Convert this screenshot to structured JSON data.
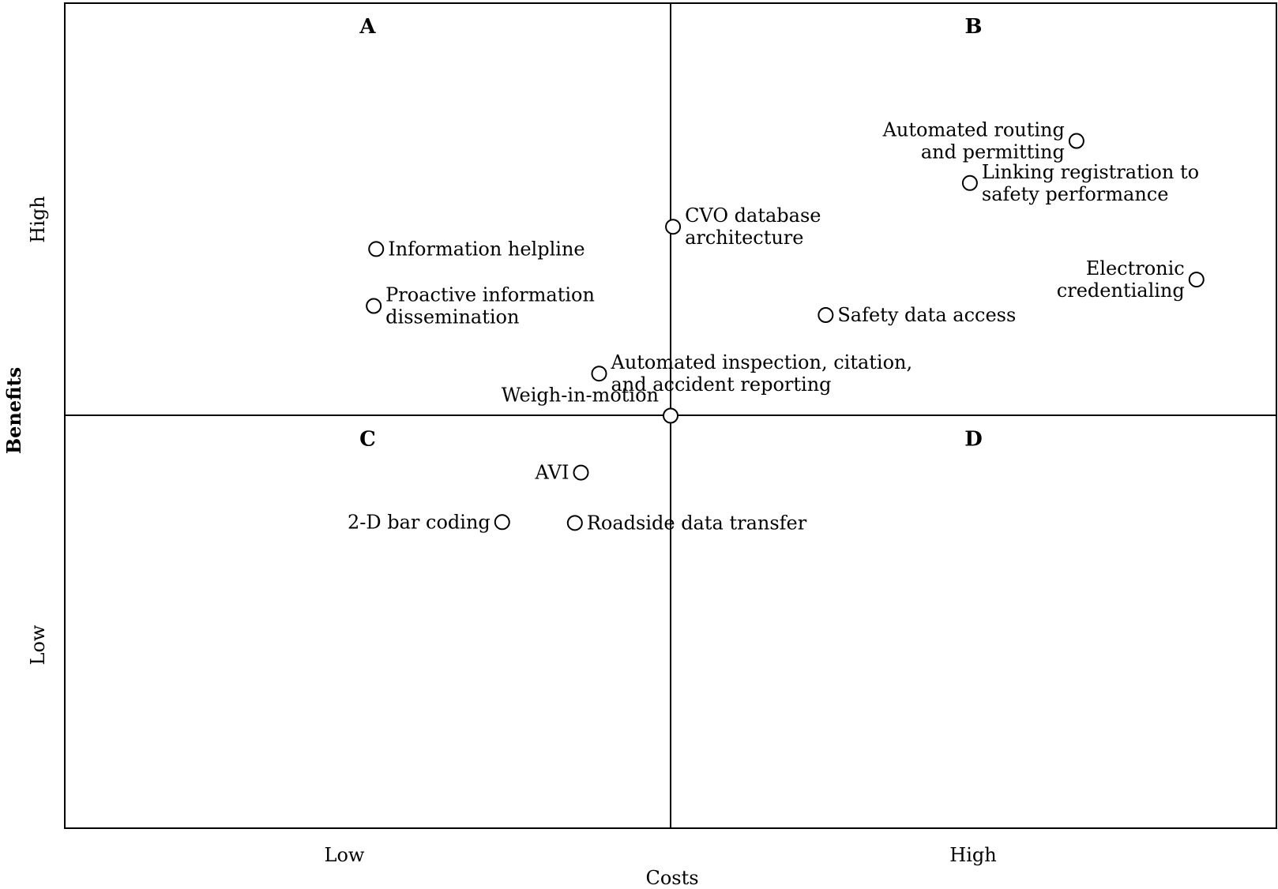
{
  "chart_data": {
    "type": "scatter",
    "title": "",
    "xlabel": "Costs",
    "ylabel": "Benefits",
    "x_ticks": [
      "Low",
      "High"
    ],
    "y_ticks": [
      "High",
      "Low"
    ],
    "xlim": [
      0,
      100
    ],
    "ylim": [
      0,
      100
    ],
    "grid": false,
    "quadrants": [
      {
        "id": "A",
        "label": "A",
        "x": 25,
        "y": 100
      },
      {
        "id": "B",
        "label": "B",
        "x": 75,
        "y": 100
      },
      {
        "id": "C",
        "label": "C",
        "x": 25,
        "y": 50
      },
      {
        "id": "D",
        "label": "D",
        "x": 75,
        "y": 50
      }
    ],
    "points": [
      {
        "label": [
          "Automated routing",
          "and permitting"
        ],
        "x": 83.5,
        "y": 83.3,
        "label_side": "left"
      },
      {
        "label": [
          "Linking registration to",
          "safety performance"
        ],
        "x": 74.7,
        "y": 78.2,
        "label_side": "right"
      },
      {
        "label": [
          "CVO database",
          "architecture"
        ],
        "x": 50.2,
        "y": 72.9,
        "label_side": "right"
      },
      {
        "label": [
          "Information helpline"
        ],
        "x": 25.7,
        "y": 70.2,
        "label_side": "right"
      },
      {
        "label": [
          "Electronic",
          "credentialing"
        ],
        "x": 93.4,
        "y": 66.5,
        "label_side": "left"
      },
      {
        "label": [
          "Proactive information",
          "dissemination"
        ],
        "x": 25.5,
        "y": 63.3,
        "label_side": "right"
      },
      {
        "label": [
          "Safety data access"
        ],
        "x": 62.8,
        "y": 62.2,
        "label_side": "right"
      },
      {
        "label": [
          "Automated inspection, citation,",
          "and accident reporting"
        ],
        "x": 44.1,
        "y": 55.1,
        "label_side": "right"
      },
      {
        "label": [
          "Weigh-in-motion"
        ],
        "x": 50.0,
        "y": 50.0,
        "label_side": "left"
      },
      {
        "label": [
          "AVI"
        ],
        "x": 42.6,
        "y": 43.1,
        "label_side": "left"
      },
      {
        "label": [
          "2-D bar coding"
        ],
        "x": 36.1,
        "y": 37.1,
        "label_side": "left"
      },
      {
        "label": [
          "Roadside data transfer"
        ],
        "x": 42.1,
        "y": 37.0,
        "label_side": "right"
      }
    ]
  }
}
